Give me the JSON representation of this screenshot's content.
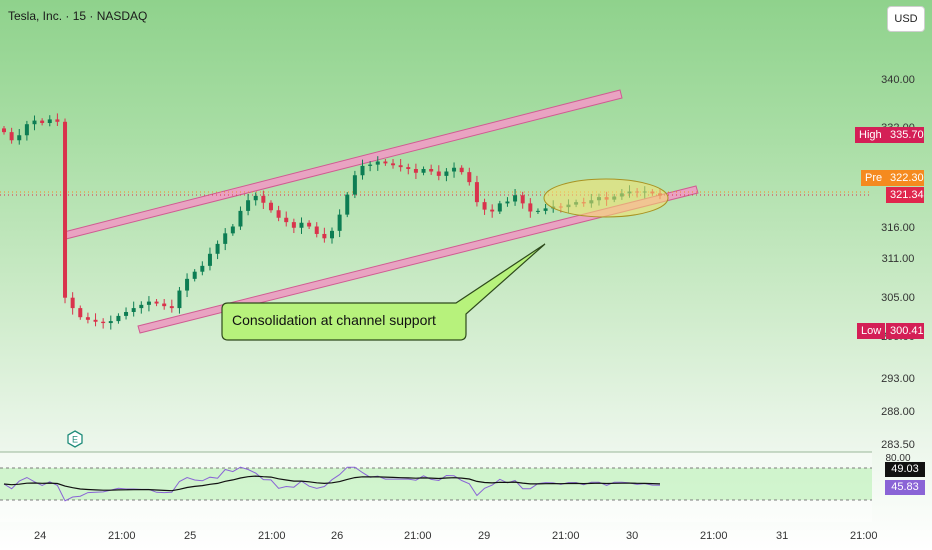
{
  "symbol_title": "Tesla, Inc. · 15 · NASDAQ",
  "currency_button": "USD",
  "y_axis_ticks": [
    "340.00",
    "332.00",
    "316.00",
    "311.00",
    "305.00",
    "299.00",
    "293.00",
    "288.00",
    "283.50"
  ],
  "x_axis_ticks": [
    "24",
    "21:00",
    "25",
    "21:00",
    "26",
    "21:00",
    "29",
    "21:00",
    "30",
    "21:00",
    "31",
    "21:00"
  ],
  "high_tag": {
    "label": "High",
    "value": "335.70",
    "color": "#d41f56"
  },
  "pre_tag": {
    "label": "Pre",
    "value": "322.30",
    "color": "#f58a1f"
  },
  "last_price": {
    "value": "321.34",
    "color": "#e0264d"
  },
  "low_tag": {
    "label": "Low",
    "value": "300.41",
    "color": "#d41f56"
  },
  "annotation": {
    "text": "Consolidation at channel support",
    "fill": "#b7f27c"
  },
  "earnings_marker": "E",
  "rsi": {
    "top_label": "80.00",
    "value": "49.03",
    "ma_value": "45.83",
    "value_color": "#111111",
    "ma_color": "#8a64d6"
  },
  "colors": {
    "up": "#0d7d53",
    "down": "#d9334c",
    "channel": "#e07aa6",
    "highlight": "#f7e16b"
  },
  "chart_data": {
    "type": "candlestick",
    "y_ticks": [
      340,
      332,
      316,
      311,
      305,
      299,
      293,
      288,
      283.5
    ],
    "x_ticks": [
      "24",
      "21:00",
      "25",
      "21:00",
      "26",
      "21:00",
      "29",
      "21:00",
      "30",
      "21:00",
      "31",
      "21:00"
    ],
    "closes": [
      331.5,
      330.2,
      331.0,
      332.8,
      333.4,
      333.0,
      333.6,
      333.2,
      305.2,
      303.6,
      302.2,
      301.8,
      301.5,
      301.3,
      301.6,
      302.4,
      303.0,
      303.6,
      304.1,
      304.6,
      304.3,
      303.9,
      303.6,
      306.3,
      308.1,
      309.2,
      310.1,
      312.0,
      313.6,
      315.3,
      316.4,
      318.9,
      320.6,
      321.3,
      320.2,
      319.0,
      317.8,
      317.1,
      316.2,
      317.0,
      316.4,
      315.2,
      314.5,
      315.7,
      318.3,
      321.5,
      324.6,
      326.1,
      326.3,
      326.8,
      326.5,
      326.2,
      325.9,
      325.6,
      325.0,
      325.6,
      325.2,
      324.5,
      325.2,
      325.8,
      325.1,
      323.5,
      320.3,
      319.1,
      318.8,
      320.1,
      320.4,
      321.4,
      320.1,
      318.8,
      318.9,
      319.3,
      319.6,
      319.5,
      319.9,
      320.3,
      320.1,
      320.6,
      321.1,
      320.7,
      321.2,
      321.7,
      322.0,
      321.9,
      322.0,
      321.7,
      321.34
    ],
    "high": 335.7,
    "low": 300.41,
    "last": 321.34,
    "pre": 322.3,
    "annotations": [
      "Consolidation at channel support"
    ],
    "rsi": {
      "value": 49.03,
      "ma": 45.83
    }
  }
}
